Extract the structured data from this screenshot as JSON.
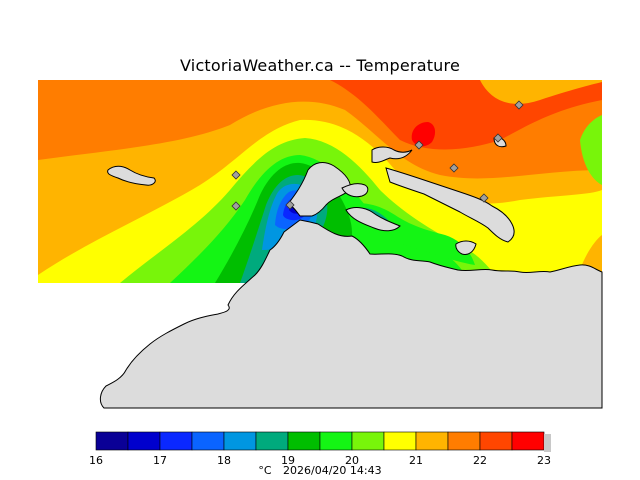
{
  "title": "VictoriaWeather.ca -- Temperature",
  "footer": {
    "unit": "°C",
    "timestamp": "2026/04/20 14:43"
  },
  "legend": {
    "ticks": [
      "16",
      "17",
      "18",
      "19",
      "20",
      "21",
      "22",
      "23"
    ],
    "colors": [
      "#0a0096",
      "#0000cd",
      "#0a28ff",
      "#0a64ff",
      "#0096e1",
      "#00aa7d",
      "#00be00",
      "#14f514",
      "#78f50a",
      "#ffff00",
      "#ffb400",
      "#ff7d00",
      "#ff4600",
      "#ff0000"
    ]
  },
  "map": {
    "land_color": "#dcdcdc",
    "water_background": "#ff9900",
    "station_count": 8
  }
}
